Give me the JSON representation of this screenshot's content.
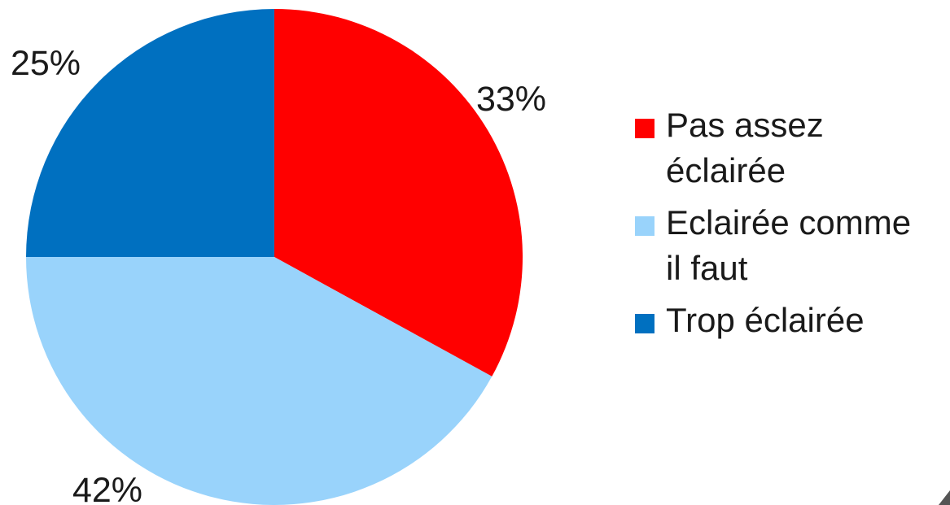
{
  "chart_data": {
    "type": "pie",
    "title": "",
    "start_angle_deg": 0,
    "direction": "clockwise",
    "legend_position": "right",
    "slices": [
      {
        "label": "Pas assez éclairée",
        "legend_lines": [
          "Pas assez",
          "éclairée"
        ],
        "value": 33,
        "display": "33%",
        "color": "#ff0000"
      },
      {
        "label": "Eclairée comme il faut",
        "legend_lines": [
          "Eclairée comme",
          "il faut"
        ],
        "value": 42,
        "display": "42%",
        "color": "#99d3fb"
      },
      {
        "label": "Trop éclairée",
        "legend_lines": [
          "Trop éclairée"
        ],
        "value": 25,
        "display": "25%",
        "color": "#0070c0"
      }
    ]
  }
}
